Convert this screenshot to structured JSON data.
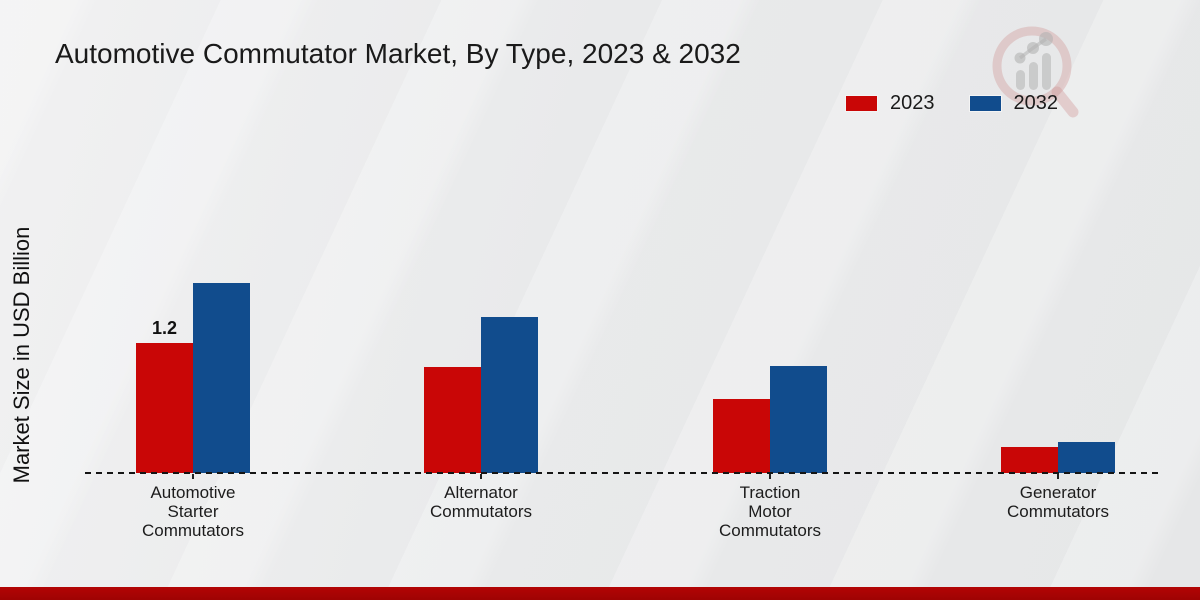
{
  "chart_data": {
    "type": "bar",
    "title": "Automotive Commutator Market, By Type, 2023 & 2032",
    "xlabel": "",
    "ylabel": "Market Size in USD Billion",
    "categories": [
      "Automotive Starter Commutators",
      "Alternator Commutators",
      "Traction Motor Commutators",
      "Generator Commutators"
    ],
    "series": [
      {
        "name": "2023",
        "color": "#c90606",
        "values": [
          1.2,
          0.98,
          0.68,
          0.24
        ]
      },
      {
        "name": "2032",
        "color": "#114c8d",
        "values": [
          1.75,
          1.44,
          0.99,
          0.29
        ]
      }
    ],
    "annotations": [
      {
        "series": "2023",
        "category": "Automotive Starter Commutators",
        "text": "1.2"
      }
    ],
    "ylim": [
      0,
      2.2
    ],
    "grid": false,
    "legend_position": "top-right",
    "axis_style": "dashed-baseline-only"
  },
  "colors": {
    "series_2023": "#c90606",
    "series_2032": "#114c8d",
    "footer_band": "#b30505",
    "title_text": "#1a1a1a"
  },
  "watermark": {
    "icon_name": "magnifier-growth-chart-logo"
  }
}
